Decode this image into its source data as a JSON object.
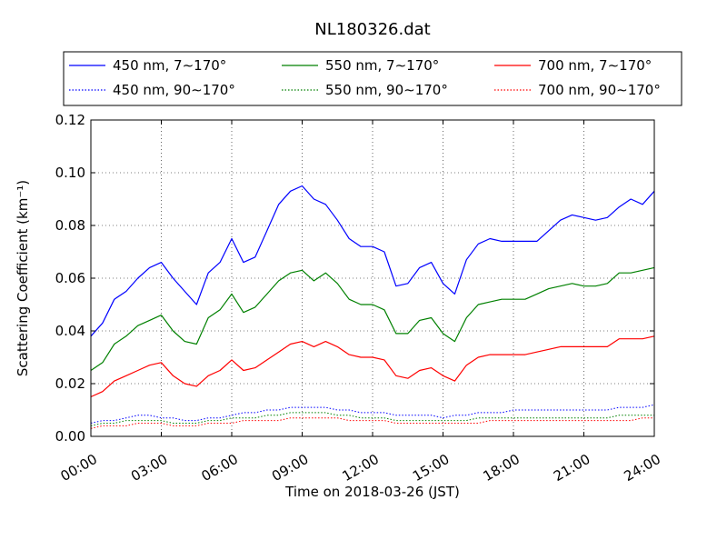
{
  "chart_data": {
    "type": "line",
    "title": "NL180326.dat",
    "xlabel": "Time on 2018-03-26 (JST)",
    "ylabel": "Scattering Coefficient (km⁻¹)",
    "xlim": [
      "00:00",
      "24:00"
    ],
    "ylim": [
      0,
      0.12
    ],
    "grid": true,
    "legend_position": "top, above plot area",
    "x_ticks": [
      "00:00",
      "03:00",
      "06:00",
      "09:00",
      "12:00",
      "15:00",
      "18:00",
      "21:00",
      "24:00"
    ],
    "y_ticks": [
      "0.00",
      "0.02",
      "0.04",
      "0.06",
      "0.08",
      "0.10",
      "0.12"
    ],
    "x_hours": [
      0,
      0.5,
      1,
      1.5,
      2,
      2.5,
      3,
      3.5,
      4,
      4.5,
      5,
      5.5,
      6,
      6.5,
      7,
      7.5,
      8,
      8.5,
      9,
      9.5,
      10,
      10.5,
      11,
      11.5,
      12,
      12.5,
      13,
      13.5,
      14,
      14.5,
      15,
      15.5,
      16,
      16.5,
      17,
      17.5,
      18,
      18.5,
      19,
      19.5,
      20,
      20.5,
      21,
      21.5,
      22,
      22.5,
      23,
      23.5,
      24
    ],
    "series": [
      {
        "name": "450 nm, 7∼170°",
        "color": "#0000ff",
        "style": "solid",
        "values": [
          0.038,
          0.043,
          0.052,
          0.055,
          0.06,
          0.064,
          0.066,
          0.06,
          0.055,
          0.05,
          0.062,
          0.066,
          0.075,
          0.066,
          0.068,
          0.078,
          0.088,
          0.093,
          0.095,
          0.09,
          0.088,
          0.082,
          0.075,
          0.072,
          0.072,
          0.07,
          0.057,
          0.058,
          0.064,
          0.066,
          0.058,
          0.054,
          0.067,
          0.073,
          0.075,
          0.074,
          0.074,
          0.074,
          0.074,
          0.078,
          0.082,
          0.084,
          0.083,
          0.082,
          0.083,
          0.087,
          0.09,
          0.088,
          0.093
        ]
      },
      {
        "name": "450 nm, 90∼170°",
        "color": "#0000ff",
        "style": "dotted",
        "values": [
          0.005,
          0.006,
          0.006,
          0.007,
          0.008,
          0.008,
          0.007,
          0.007,
          0.006,
          0.006,
          0.007,
          0.007,
          0.008,
          0.009,
          0.009,
          0.01,
          0.01,
          0.011,
          0.011,
          0.011,
          0.011,
          0.01,
          0.01,
          0.009,
          0.009,
          0.009,
          0.008,
          0.008,
          0.008,
          0.008,
          0.007,
          0.008,
          0.008,
          0.009,
          0.009,
          0.009,
          0.01,
          0.01,
          0.01,
          0.01,
          0.01,
          0.01,
          0.01,
          0.01,
          0.01,
          0.011,
          0.011,
          0.011,
          0.012
        ]
      },
      {
        "name": "550 nm, 7∼170°",
        "color": "#008000",
        "style": "solid",
        "values": [
          0.025,
          0.028,
          0.035,
          0.038,
          0.042,
          0.044,
          0.046,
          0.04,
          0.036,
          0.035,
          0.045,
          0.048,
          0.054,
          0.047,
          0.049,
          0.054,
          0.059,
          0.062,
          0.063,
          0.059,
          0.062,
          0.058,
          0.052,
          0.05,
          0.05,
          0.048,
          0.039,
          0.039,
          0.044,
          0.045,
          0.039,
          0.036,
          0.045,
          0.05,
          0.051,
          0.052,
          0.052,
          0.052,
          0.054,
          0.056,
          0.057,
          0.058,
          0.057,
          0.057,
          0.058,
          0.062,
          0.062,
          0.063,
          0.064
        ]
      },
      {
        "name": "550 nm, 90∼170°",
        "color": "#008000",
        "style": "dotted",
        "values": [
          0.004,
          0.005,
          0.005,
          0.006,
          0.006,
          0.006,
          0.006,
          0.005,
          0.005,
          0.005,
          0.006,
          0.006,
          0.007,
          0.007,
          0.007,
          0.008,
          0.008,
          0.009,
          0.009,
          0.009,
          0.009,
          0.008,
          0.008,
          0.007,
          0.007,
          0.007,
          0.006,
          0.006,
          0.006,
          0.006,
          0.006,
          0.006,
          0.006,
          0.007,
          0.007,
          0.007,
          0.007,
          0.007,
          0.007,
          0.007,
          0.007,
          0.007,
          0.007,
          0.007,
          0.007,
          0.008,
          0.008,
          0.008,
          0.008
        ]
      },
      {
        "name": "700 nm, 7∼170°",
        "color": "#ff0000",
        "style": "solid",
        "values": [
          0.015,
          0.017,
          0.021,
          0.023,
          0.025,
          0.027,
          0.028,
          0.023,
          0.02,
          0.019,
          0.023,
          0.025,
          0.029,
          0.025,
          0.026,
          0.029,
          0.032,
          0.035,
          0.036,
          0.034,
          0.036,
          0.034,
          0.031,
          0.03,
          0.03,
          0.029,
          0.023,
          0.022,
          0.025,
          0.026,
          0.023,
          0.021,
          0.027,
          0.03,
          0.031,
          0.031,
          0.031,
          0.031,
          0.032,
          0.033,
          0.034,
          0.034,
          0.034,
          0.034,
          0.034,
          0.037,
          0.037,
          0.037,
          0.038
        ]
      },
      {
        "name": "700 nm, 90∼170°",
        "color": "#ff0000",
        "style": "dotted",
        "values": [
          0.003,
          0.004,
          0.004,
          0.004,
          0.005,
          0.005,
          0.005,
          0.004,
          0.004,
          0.004,
          0.005,
          0.005,
          0.005,
          0.006,
          0.006,
          0.006,
          0.006,
          0.007,
          0.007,
          0.007,
          0.007,
          0.007,
          0.006,
          0.006,
          0.006,
          0.006,
          0.005,
          0.005,
          0.005,
          0.005,
          0.005,
          0.005,
          0.005,
          0.005,
          0.006,
          0.006,
          0.006,
          0.006,
          0.006,
          0.006,
          0.006,
          0.006,
          0.006,
          0.006,
          0.006,
          0.006,
          0.006,
          0.007,
          0.007
        ]
      }
    ]
  }
}
